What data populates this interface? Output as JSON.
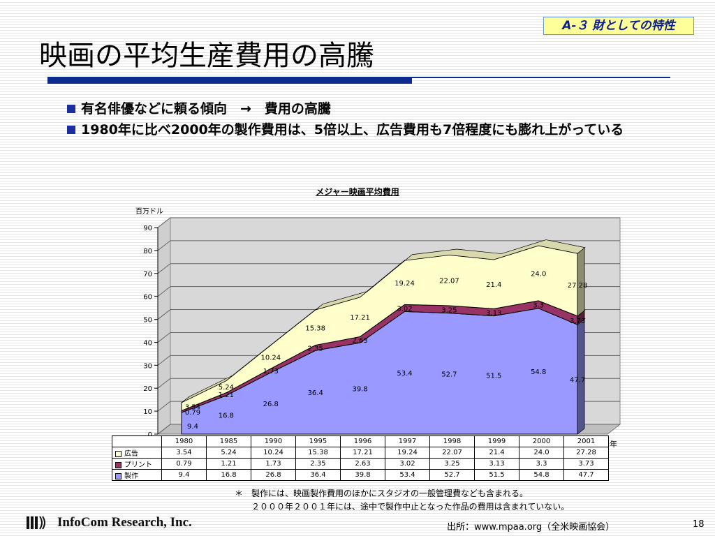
{
  "slide": {
    "tag": "A-３  財としての特性",
    "title": "映画の平均生産費用の高騰",
    "bullets": [
      "有名俳優などに頼る傾向　→　費用の高騰",
      "1980年に比べ2000年の製作費用は、5倍以上、広告費用も7倍程度にも膨れ上がっている"
    ],
    "footnote_line1": "＊　製作には、映画製作費用のほかにスタジオの一般管理費なども含まれる。",
    "footnote_line2": "　　２０００年２００１年には、途中で製作中止となった作品の費用は含まれていない。",
    "logo_text": "InfoCom Research, Inc.",
    "source": "出所：www.mpaa.org（全米映画協会）",
    "page_number": "18"
  },
  "chart_data": {
    "type": "area",
    "stacked": true,
    "title": "メジャー映画平均費用",
    "ylabel": "百万ドル",
    "xlabel": "年",
    "ylim": [
      0,
      90
    ],
    "yticks": [
      0,
      10,
      20,
      30,
      40,
      50,
      60,
      70,
      80,
      90
    ],
    "grid": true,
    "categories": [
      "1980",
      "1985",
      "1990",
      "1995",
      "1996",
      "1997",
      "1998",
      "1999",
      "2000",
      "2001"
    ],
    "series": [
      {
        "name": "製作",
        "color": "#9999ff",
        "values": [
          9.4,
          16.8,
          26.8,
          36.4,
          39.8,
          53.4,
          52.7,
          51.5,
          54.8,
          47.7
        ],
        "labels": [
          "9.4",
          "16.8",
          "26.8",
          "36.4",
          "39.8",
          "53.4",
          "52.7",
          "51.5",
          "54.8",
          "47.7"
        ]
      },
      {
        "name": "プリント",
        "color": "#993366",
        "values": [
          0.79,
          1.21,
          1.73,
          2.35,
          2.63,
          3.02,
          3.25,
          3.13,
          3.3,
          3.73
        ],
        "labels": [
          "0.79",
          "1.21",
          "1.73",
          "2.35",
          "2.63",
          "3.02",
          "3.25",
          "3.13",
          "3.3",
          "3.73"
        ]
      },
      {
        "name": "広告",
        "color": "#ffffcc",
        "values": [
          3.54,
          5.24,
          10.24,
          15.38,
          17.21,
          19.24,
          22.07,
          21.4,
          24.0,
          27.28
        ],
        "labels": [
          "3.54",
          "5.24",
          "10.24",
          "15.38",
          "17.21",
          "19.24",
          "22.07",
          "21.4",
          "24.0",
          "27.28"
        ]
      }
    ],
    "table_rows": [
      {
        "name": "広告",
        "color": "#ffffcc",
        "values": [
          "3.54",
          "5.24",
          "10.24",
          "15.38",
          "17.21",
          "19.24",
          "22.07",
          "21.4",
          "24.0",
          "27.28"
        ]
      },
      {
        "name": "プリント",
        "color": "#993366",
        "values": [
          "0.79",
          "1.21",
          "1.73",
          "2.35",
          "2.63",
          "3.02",
          "3.25",
          "3.13",
          "3.3",
          "3.73"
        ]
      },
      {
        "name": "製作",
        "color": "#9999ff",
        "values": [
          "9.4",
          "16.8",
          "26.8",
          "36.4",
          "39.8",
          "53.4",
          "52.7",
          "51.5",
          "54.8",
          "47.7"
        ]
      }
    ]
  }
}
